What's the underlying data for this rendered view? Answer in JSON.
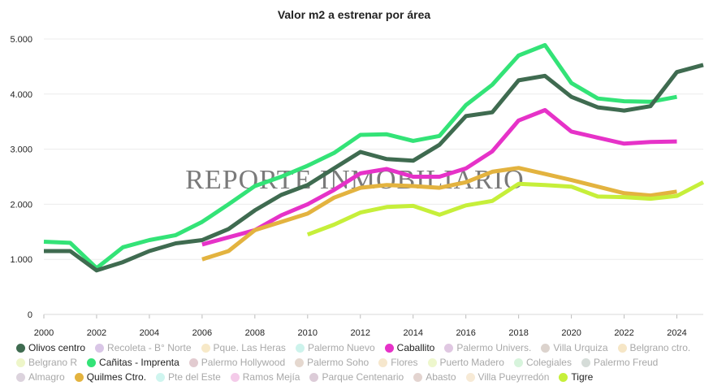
{
  "chart_data": {
    "type": "line",
    "title": "Valor m2 a estrenar por área",
    "watermark": "REPORTE INMOBILIARIO",
    "xlim": [
      2000,
      2025
    ],
    "ylim": [
      0,
      5000
    ],
    "x_ticks": [
      2000,
      2002,
      2004,
      2006,
      2008,
      2010,
      2012,
      2014,
      2016,
      2018,
      2020,
      2022,
      2024
    ],
    "x_tick_labels": [
      "2000",
      "2002",
      "2004",
      "2006",
      "2008",
      "2010",
      "2012",
      "2014",
      "2016",
      "2018",
      "2020",
      "2022",
      "2024"
    ],
    "y_ticks": [
      0,
      1000,
      2000,
      3000,
      4000,
      5000
    ],
    "y_tick_labels": [
      "0",
      "1.000",
      "2.000",
      "3.000",
      "4.000",
      "5.000"
    ],
    "grid": true,
    "legend_position": "bottom",
    "series": [
      {
        "name": "Cañitas - Imprenta",
        "color": "#33e377",
        "x": [
          2000,
          2001,
          2002,
          2003,
          2004,
          2005,
          2006,
          2007,
          2008,
          2009,
          2010,
          2011,
          2012,
          2013,
          2014,
          2015,
          2016,
          2017,
          2018,
          2019,
          2020,
          2021,
          2022,
          2023,
          2024
        ],
        "values": [
          1320,
          1300,
          840,
          1220,
          1350,
          1440,
          1680,
          2000,
          2330,
          2500,
          2700,
          2930,
          3260,
          3270,
          3150,
          3240,
          3800,
          4170,
          4700,
          4890,
          4200,
          3920,
          3870,
          3860,
          3950
        ]
      },
      {
        "name": "Olivos centro",
        "color": "#3f6b50",
        "x": [
          2000,
          2001,
          2002,
          2003,
          2004,
          2005,
          2006,
          2007,
          2008,
          2009,
          2010,
          2011,
          2012,
          2013,
          2014,
          2015,
          2016,
          2017,
          2018,
          2019,
          2020,
          2021,
          2022,
          2023,
          2024,
          2025
        ],
        "values": [
          1150,
          1150,
          800,
          950,
          1150,
          1290,
          1350,
          1550,
          1890,
          2170,
          2350,
          2650,
          2950,
          2820,
          2790,
          3080,
          3600,
          3670,
          4250,
          4330,
          3950,
          3760,
          3700,
          3780,
          4400,
          4530
        ]
      },
      {
        "name": "Caballito",
        "color": "#e632c8",
        "x": [
          2006,
          2007,
          2008,
          2009,
          2010,
          2011,
          2012,
          2013,
          2014,
          2015,
          2016,
          2017,
          2018,
          2019,
          2020,
          2021,
          2022,
          2023,
          2024
        ],
        "values": [
          1270,
          1400,
          1530,
          1800,
          2000,
          2260,
          2560,
          2640,
          2500,
          2500,
          2650,
          2960,
          3520,
          3710,
          3320,
          3210,
          3100,
          3130,
          3140
        ]
      },
      {
        "name": "Quilmes Ctro.",
        "color": "#e3b33f",
        "x": [
          2006,
          2007,
          2008,
          2009,
          2010,
          2011,
          2012,
          2013,
          2014,
          2015,
          2016,
          2017,
          2018,
          2019,
          2020,
          2021,
          2022,
          2023,
          2024
        ],
        "values": [
          1000,
          1150,
          1530,
          1680,
          1830,
          2120,
          2300,
          2350,
          2330,
          2300,
          2400,
          2590,
          2660,
          2550,
          2440,
          2320,
          2200,
          2160,
          2230
        ]
      },
      {
        "name": "Tigre",
        "color": "#c6ef3a",
        "x": [
          2010,
          2011,
          2012,
          2013,
          2014,
          2015,
          2016,
          2017,
          2018,
          2019,
          2020,
          2021,
          2022,
          2023,
          2024,
          2025
        ],
        "values": [
          1450,
          1630,
          1850,
          1950,
          1970,
          1810,
          1980,
          2060,
          2370,
          2350,
          2320,
          2140,
          2130,
          2100,
          2150,
          2400
        ]
      }
    ]
  },
  "legend": [
    {
      "label": "Olivos centro",
      "color": "#3f6b50",
      "active": true
    },
    {
      "label": "Recoleta - B° Norte",
      "color": "#d9c6e6",
      "active": false
    },
    {
      "label": "Pque. Las Heras",
      "color": "#f7e9c8",
      "active": false
    },
    {
      "label": "Palermo Nuevo",
      "color": "#cdf3ec",
      "active": false
    },
    {
      "label": "Caballito",
      "color": "#e632c8",
      "active": true
    },
    {
      "label": "Palermo Univers.",
      "color": "#e0c8e2",
      "active": false
    },
    {
      "label": "Villa Urquiza",
      "color": "#dcd3cd",
      "active": false
    },
    {
      "label": "Belgrano ctro.",
      "color": "#f6e6c6",
      "active": false
    },
    {
      "label": "Belgrano R",
      "color": "#eef6c9",
      "active": false
    },
    {
      "label": "Cañitas - Imprenta",
      "color": "#33e377",
      "active": true
    },
    {
      "label": "Palermo Hollywood",
      "color": "#e2cbd0",
      "active": false
    },
    {
      "label": "Palermo Soho",
      "color": "#e5d8cf",
      "active": false
    },
    {
      "label": "Flores",
      "color": "#f6e7cd",
      "active": false
    },
    {
      "label": "Puerto Madero",
      "color": "#eef7cd",
      "active": false
    },
    {
      "label": "Colegiales",
      "color": "#d7f4dc",
      "active": false
    },
    {
      "label": "Palermo Freud",
      "color": "#d5dcd8",
      "active": false
    },
    {
      "label": "Almagro",
      "color": "#dcd3dd",
      "active": false
    },
    {
      "label": "Quilmes Ctro.",
      "color": "#e3b33f",
      "active": true
    },
    {
      "label": "Pte del Este",
      "color": "#cff5ef",
      "active": false
    },
    {
      "label": "Ramos Mejía",
      "color": "#f4cbe9",
      "active": false
    },
    {
      "label": "Parque Centenario",
      "color": "#dcccd8",
      "active": false
    },
    {
      "label": "Abasto",
      "color": "#e3d4d0",
      "active": false
    },
    {
      "label": "Villa Pueyrredón",
      "color": "#f7ead6",
      "active": false
    },
    {
      "label": "Tigre",
      "color": "#c6ef3a",
      "active": true
    }
  ]
}
